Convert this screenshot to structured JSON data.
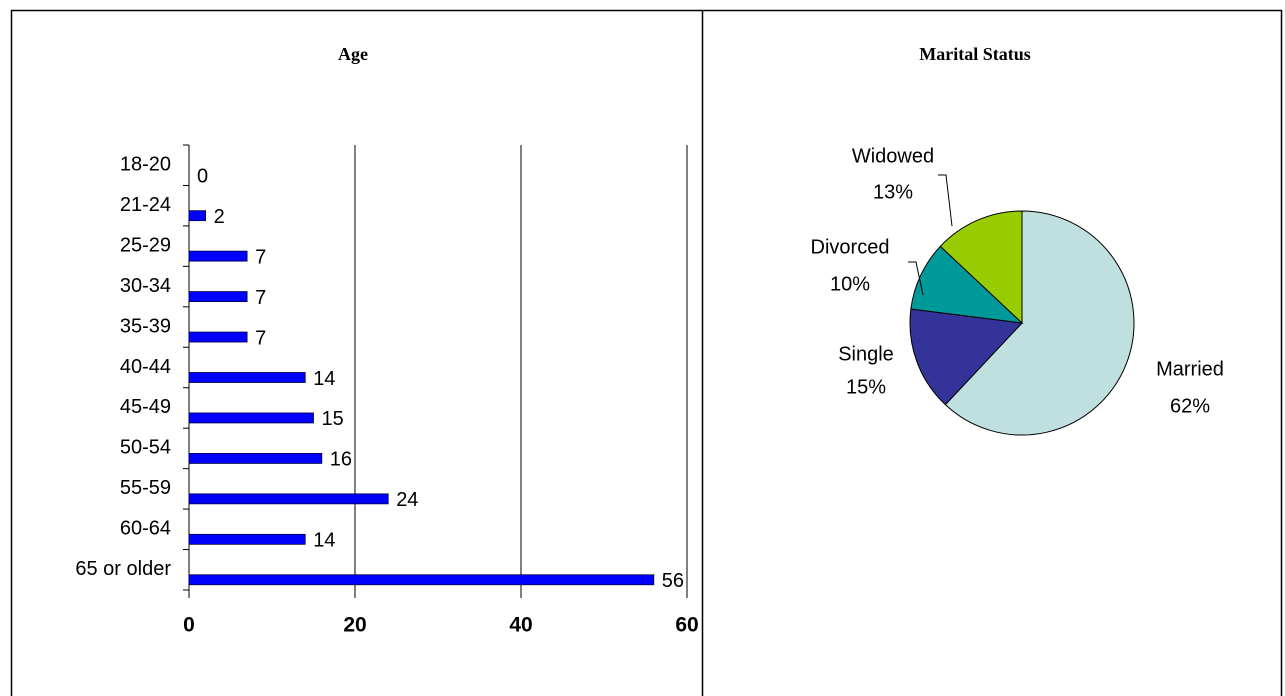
{
  "chart_data": [
    {
      "type": "bar",
      "orientation": "horizontal",
      "title": "Age",
      "categories": [
        "18-20",
        "21-24",
        "25-29",
        "30-34",
        "35-39",
        "40-44",
        "45-49",
        "50-54",
        "55-59",
        "60-64",
        "65 or older"
      ],
      "values": [
        0,
        2,
        7,
        7,
        7,
        14,
        15,
        16,
        24,
        14,
        56
      ],
      "color": "#0000ff",
      "xlim": [
        0,
        60
      ],
      "xticks": [
        0,
        20,
        40,
        60
      ],
      "grid": true
    },
    {
      "type": "pie",
      "title": "Marital Status",
      "categories": [
        "Married",
        "Single",
        "Divorced",
        "Widowed"
      ],
      "values": [
        62,
        15,
        10,
        13
      ],
      "value_labels": [
        "62%",
        "15%",
        "10%",
        "13%"
      ],
      "colors": [
        "#c0e0e0",
        "#333399",
        "#009999",
        "#99cc00"
      ]
    }
  ]
}
